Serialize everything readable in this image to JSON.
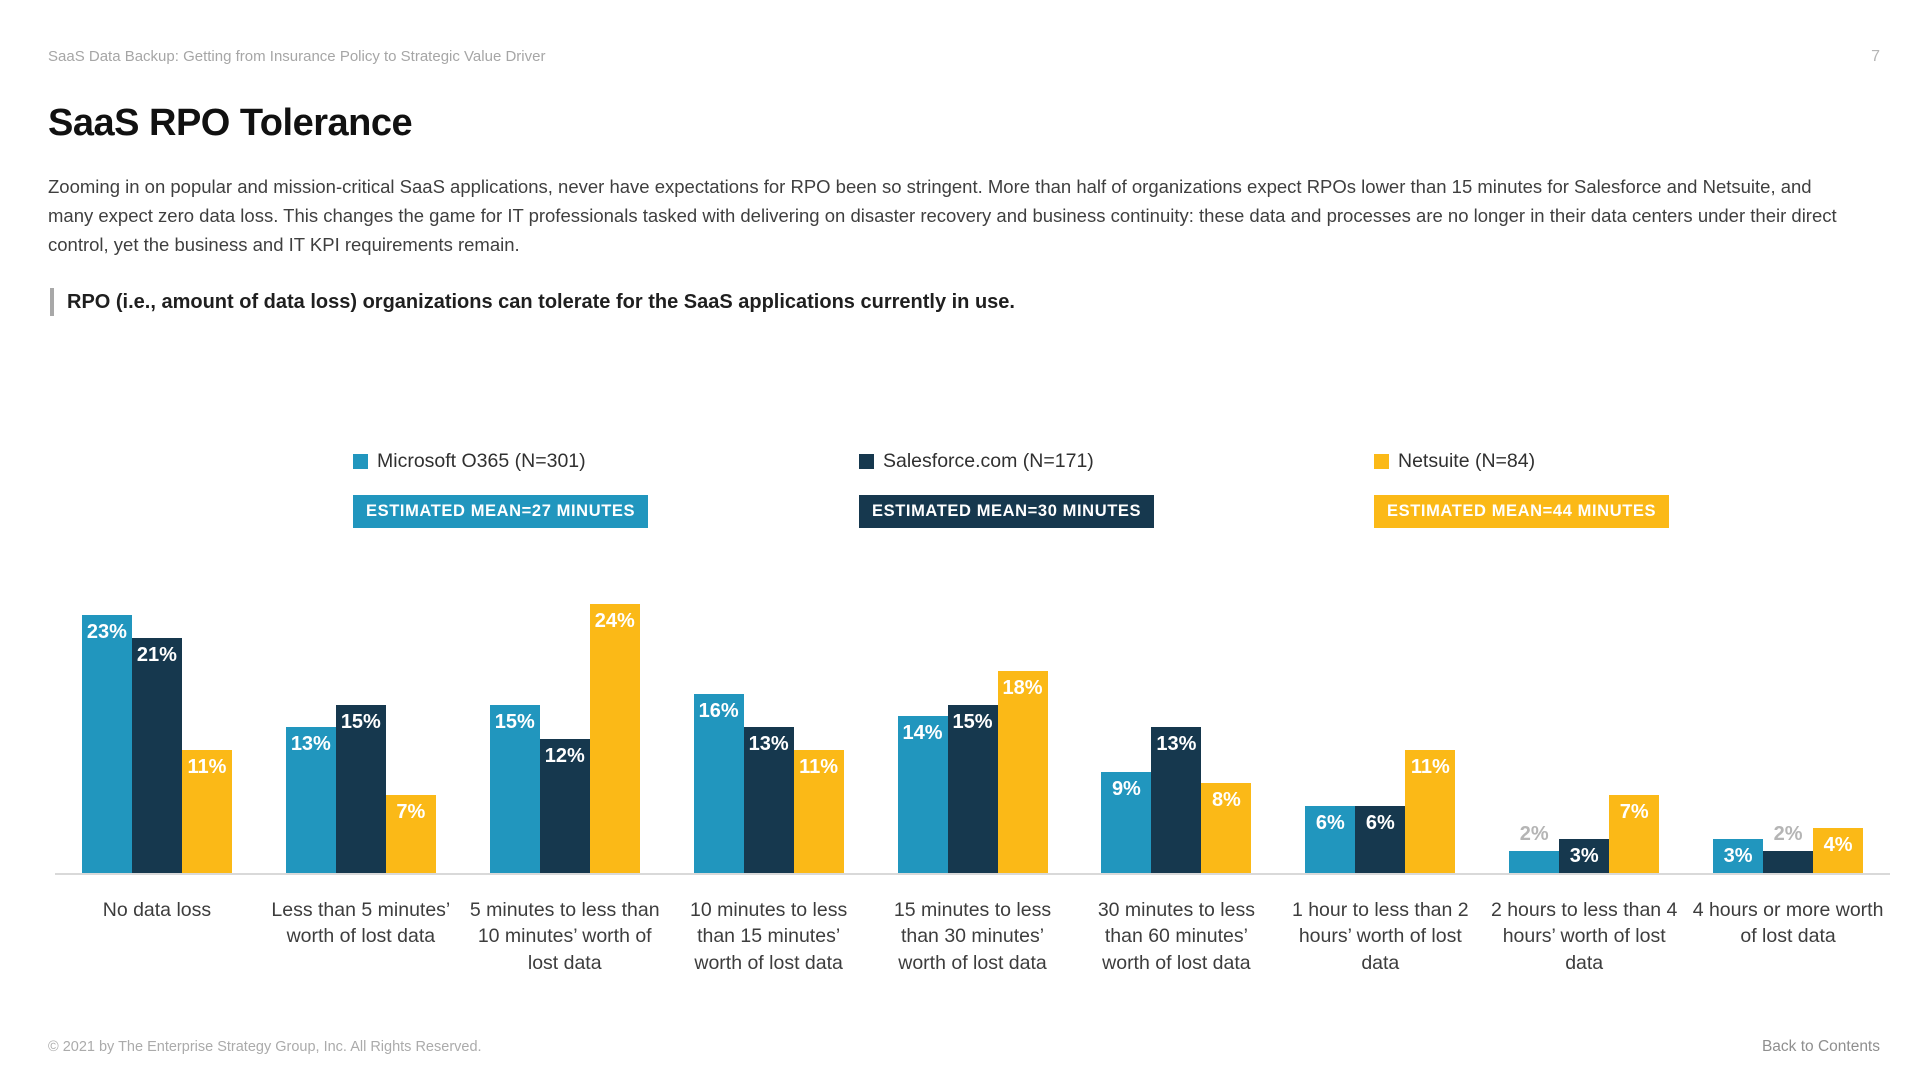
{
  "page": {
    "header": "SaaS Data Backup: Getting from Insurance Policy to Strategic Value Driver",
    "page_number": "7",
    "title": "SaaS RPO Tolerance",
    "paragraph": "Zooming in on popular and mission-critical SaaS applications, never have expectations for RPO been so stringent. More than half of organizations expect RPOs lower than 15 minutes for Salesforce and Netsuite, and many expect zero data loss. This changes the game for IT professionals tasked with delivering on disaster recovery and business continuity: these data and processes are no longer in their data centers under their direct control, yet the business and IT KPI requirements remain.",
    "chart_heading": "RPO (i.e., amount of data loss) organizations can tolerate for the SaaS applications currently in use.",
    "footer_left": "© 2021 by The Enterprise Strategy Group, Inc. All Rights Reserved.",
    "footer_right": "Back to Contents"
  },
  "chart_data": {
    "type": "bar",
    "title": "RPO (i.e., amount of data loss) organizations can tolerate for the SaaS applications currently in use.",
    "categories": [
      "No data loss",
      "Less than 5 minutes’ worth of lost data",
      "5 minutes to less than 10 minutes’ worth of lost data",
      "10 minutes to less than 15 minutes’ worth of lost data",
      "15 minutes to less than 30 minutes’ worth of lost data",
      "30 minutes to less than 60 minutes’ worth of lost data",
      "1 hour to less than 2 hours’ worth of lost data",
      "2 hours to less than 4 hours’ worth of lost data",
      "4 hours or more worth of lost data"
    ],
    "series": [
      {
        "name": "Microsoft O365 (N=301)",
        "mean_label": "ESTIMATED MEAN=27 MINUTES",
        "color": "#2196BE",
        "values": [
          23,
          13,
          15,
          16,
          14,
          9,
          6,
          2,
          3
        ]
      },
      {
        "name": "Salesforce.com (N=171)",
        "mean_label": "ESTIMATED MEAN=30 MINUTES",
        "color": "#16384E",
        "values": [
          21,
          15,
          12,
          13,
          15,
          13,
          6,
          3,
          2
        ]
      },
      {
        "name": "Netsuite (N=84)",
        "mean_label": "ESTIMATED MEAN=44 MINUTES",
        "color": "#FBB917",
        "values": [
          11,
          7,
          24,
          11,
          18,
          8,
          11,
          7,
          4
        ]
      }
    ],
    "value_suffix": "%",
    "ylim": [
      0,
      25
    ],
    "grid": false,
    "legend_position": "top",
    "outside_label_threshold": 2,
    "outside_label_color": "#b5b5b5",
    "axis_line_color": "#d9d9d9"
  }
}
